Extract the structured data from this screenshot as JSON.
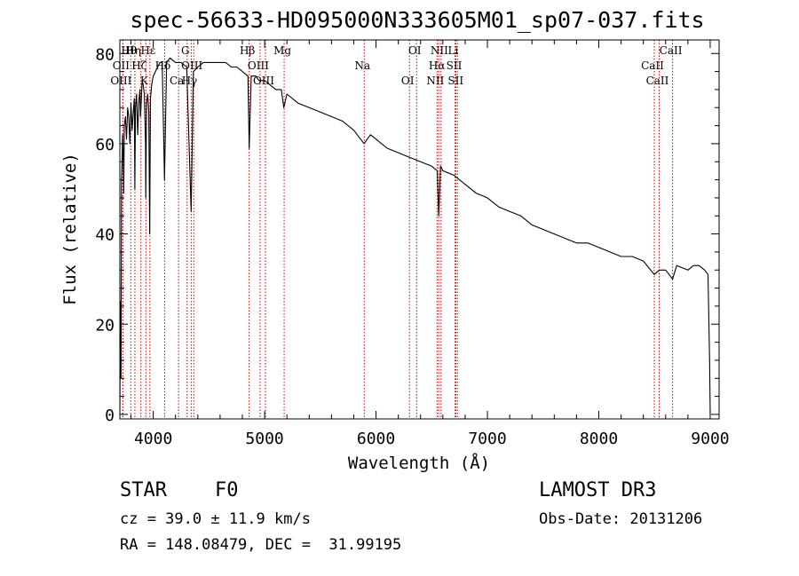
{
  "title": "spec-56633-HD095000N333605M01_sp07-037.fits",
  "chart_data": {
    "type": "line",
    "xlabel": "Wavelength (Å)",
    "ylabel": "Flux (relative)",
    "xlim": [
      3700,
      9080
    ],
    "ylim": [
      -1,
      83
    ],
    "xticks": [
      4000,
      5000,
      6000,
      7000,
      8000,
      9000
    ],
    "yticks": [
      0,
      20,
      40,
      60,
      80
    ],
    "series": [
      {
        "name": "spectrum",
        "x": [
          3700,
          3705,
          3710,
          3715,
          3720,
          3725,
          3730,
          3735,
          3740,
          3750,
          3760,
          3770,
          3780,
          3790,
          3800,
          3810,
          3820,
          3830,
          3835,
          3840,
          3850,
          3860,
          3870,
          3880,
          3885,
          3890,
          3900,
          3910,
          3920,
          3930,
          3933,
          3940,
          3950,
          3960,
          3968,
          3975,
          3985,
          4000,
          4020,
          4040,
          4060,
          4080,
          4101,
          4120,
          4150,
          4200,
          4250,
          4300,
          4340,
          4360,
          4400,
          4450,
          4500,
          4550,
          4600,
          4650,
          4700,
          4750,
          4800,
          4850,
          4861,
          4880,
          4920,
          4950,
          5000,
          5050,
          5100,
          5150,
          5172,
          5200,
          5300,
          5400,
          5500,
          5600,
          5700,
          5800,
          5893,
          5950,
          6000,
          6100,
          6200,
          6300,
          6400,
          6500,
          6550,
          6563,
          6580,
          6600,
          6700,
          6800,
          6900,
          7000,
          7100,
          7200,
          7300,
          7400,
          7500,
          7600,
          7700,
          7800,
          7900,
          8000,
          8100,
          8200,
          8300,
          8400,
          8498,
          8542,
          8600,
          8662,
          8700,
          8800,
          8850,
          8900,
          8950,
          8980,
          8995,
          9000
        ],
        "y": [
          0,
          25,
          8,
          52,
          56,
          62,
          58,
          49,
          64,
          66,
          61,
          68,
          66,
          60,
          69,
          63,
          67,
          70,
          50,
          68,
          71,
          62,
          69,
          72,
          66,
          68,
          74,
          73,
          71,
          60,
          48,
          69,
          71,
          67,
          40,
          70,
          73,
          75,
          76,
          77,
          78,
          78,
          52,
          78,
          79,
          78,
          78,
          77,
          45,
          76,
          77,
          78,
          78,
          78,
          78,
          78,
          77,
          77,
          76,
          75,
          59,
          75,
          75,
          74,
          74,
          73,
          72,
          72,
          68,
          71,
          69,
          68,
          67,
          66,
          65,
          63,
          60,
          62,
          61,
          59,
          58,
          57,
          56,
          55,
          54,
          44,
          55,
          54,
          53,
          51,
          49,
          48,
          46,
          45,
          44,
          42,
          41,
          40,
          39,
          38,
          38,
          37,
          36,
          35,
          35,
          34,
          31,
          32,
          32,
          30,
          33,
          32,
          33,
          33,
          32,
          31,
          12,
          0
        ]
      }
    ],
    "line_labels": [
      {
        "label": "Hθ",
        "wavelength": 3798
      },
      {
        "label": "OII",
        "wavelength": 3727
      },
      {
        "label": "OIII",
        "wavelength": 3727
      },
      {
        "label": "Hη",
        "wavelength": 3835
      },
      {
        "label": "Hζ",
        "wavelength": 3889
      },
      {
        "label": "K",
        "wavelength": 3934
      },
      {
        "label": "Hε",
        "wavelength": 3970
      },
      {
        "label": "Hδ",
        "wavelength": 4102
      },
      {
        "label": "Ca",
        "wavelength": 4227
      },
      {
        "label": "G",
        "wavelength": 4304
      },
      {
        "label": "OIII",
        "wavelength": 4363
      },
      {
        "label": "Hγ",
        "wavelength": 4341
      },
      {
        "label": "Hβ",
        "wavelength": 4861
      },
      {
        "label": "OIII",
        "wavelength": 4959
      },
      {
        "label": "OIII",
        "wavelength": 5007
      },
      {
        "label": "Mg",
        "wavelength": 5175
      },
      {
        "label": "Na",
        "wavelength": 5894
      },
      {
        "label": "OI",
        "wavelength": 6300
      },
      {
        "label": "OI",
        "wavelength": 6364
      },
      {
        "label": "Hα",
        "wavelength": 6563
      },
      {
        "label": "NII",
        "wavelength": 6548
      },
      {
        "label": "NII",
        "wavelength": 6584
      },
      {
        "label": "SII",
        "wavelength": 6717
      },
      {
        "label": "SII",
        "wavelength": 6731
      },
      {
        "label": "Li",
        "wavelength": 6708
      },
      {
        "label": "CaII",
        "wavelength": 8498
      },
      {
        "label": "CaII",
        "wavelength": 8542
      },
      {
        "label": "CaII",
        "wavelength": 8662
      }
    ]
  },
  "info": {
    "class_label": "STAR",
    "subclass": "F0",
    "survey": "LAMOST DR3",
    "cz": "cz = 39.0 ± 11.9 km/s",
    "obs_date": "Obs-Date: 20131206",
    "coords": "RA = 148.08479, DEC =  31.99195"
  },
  "colors": {
    "line_marker": "#cc0000",
    "spectrum": "#000000"
  }
}
